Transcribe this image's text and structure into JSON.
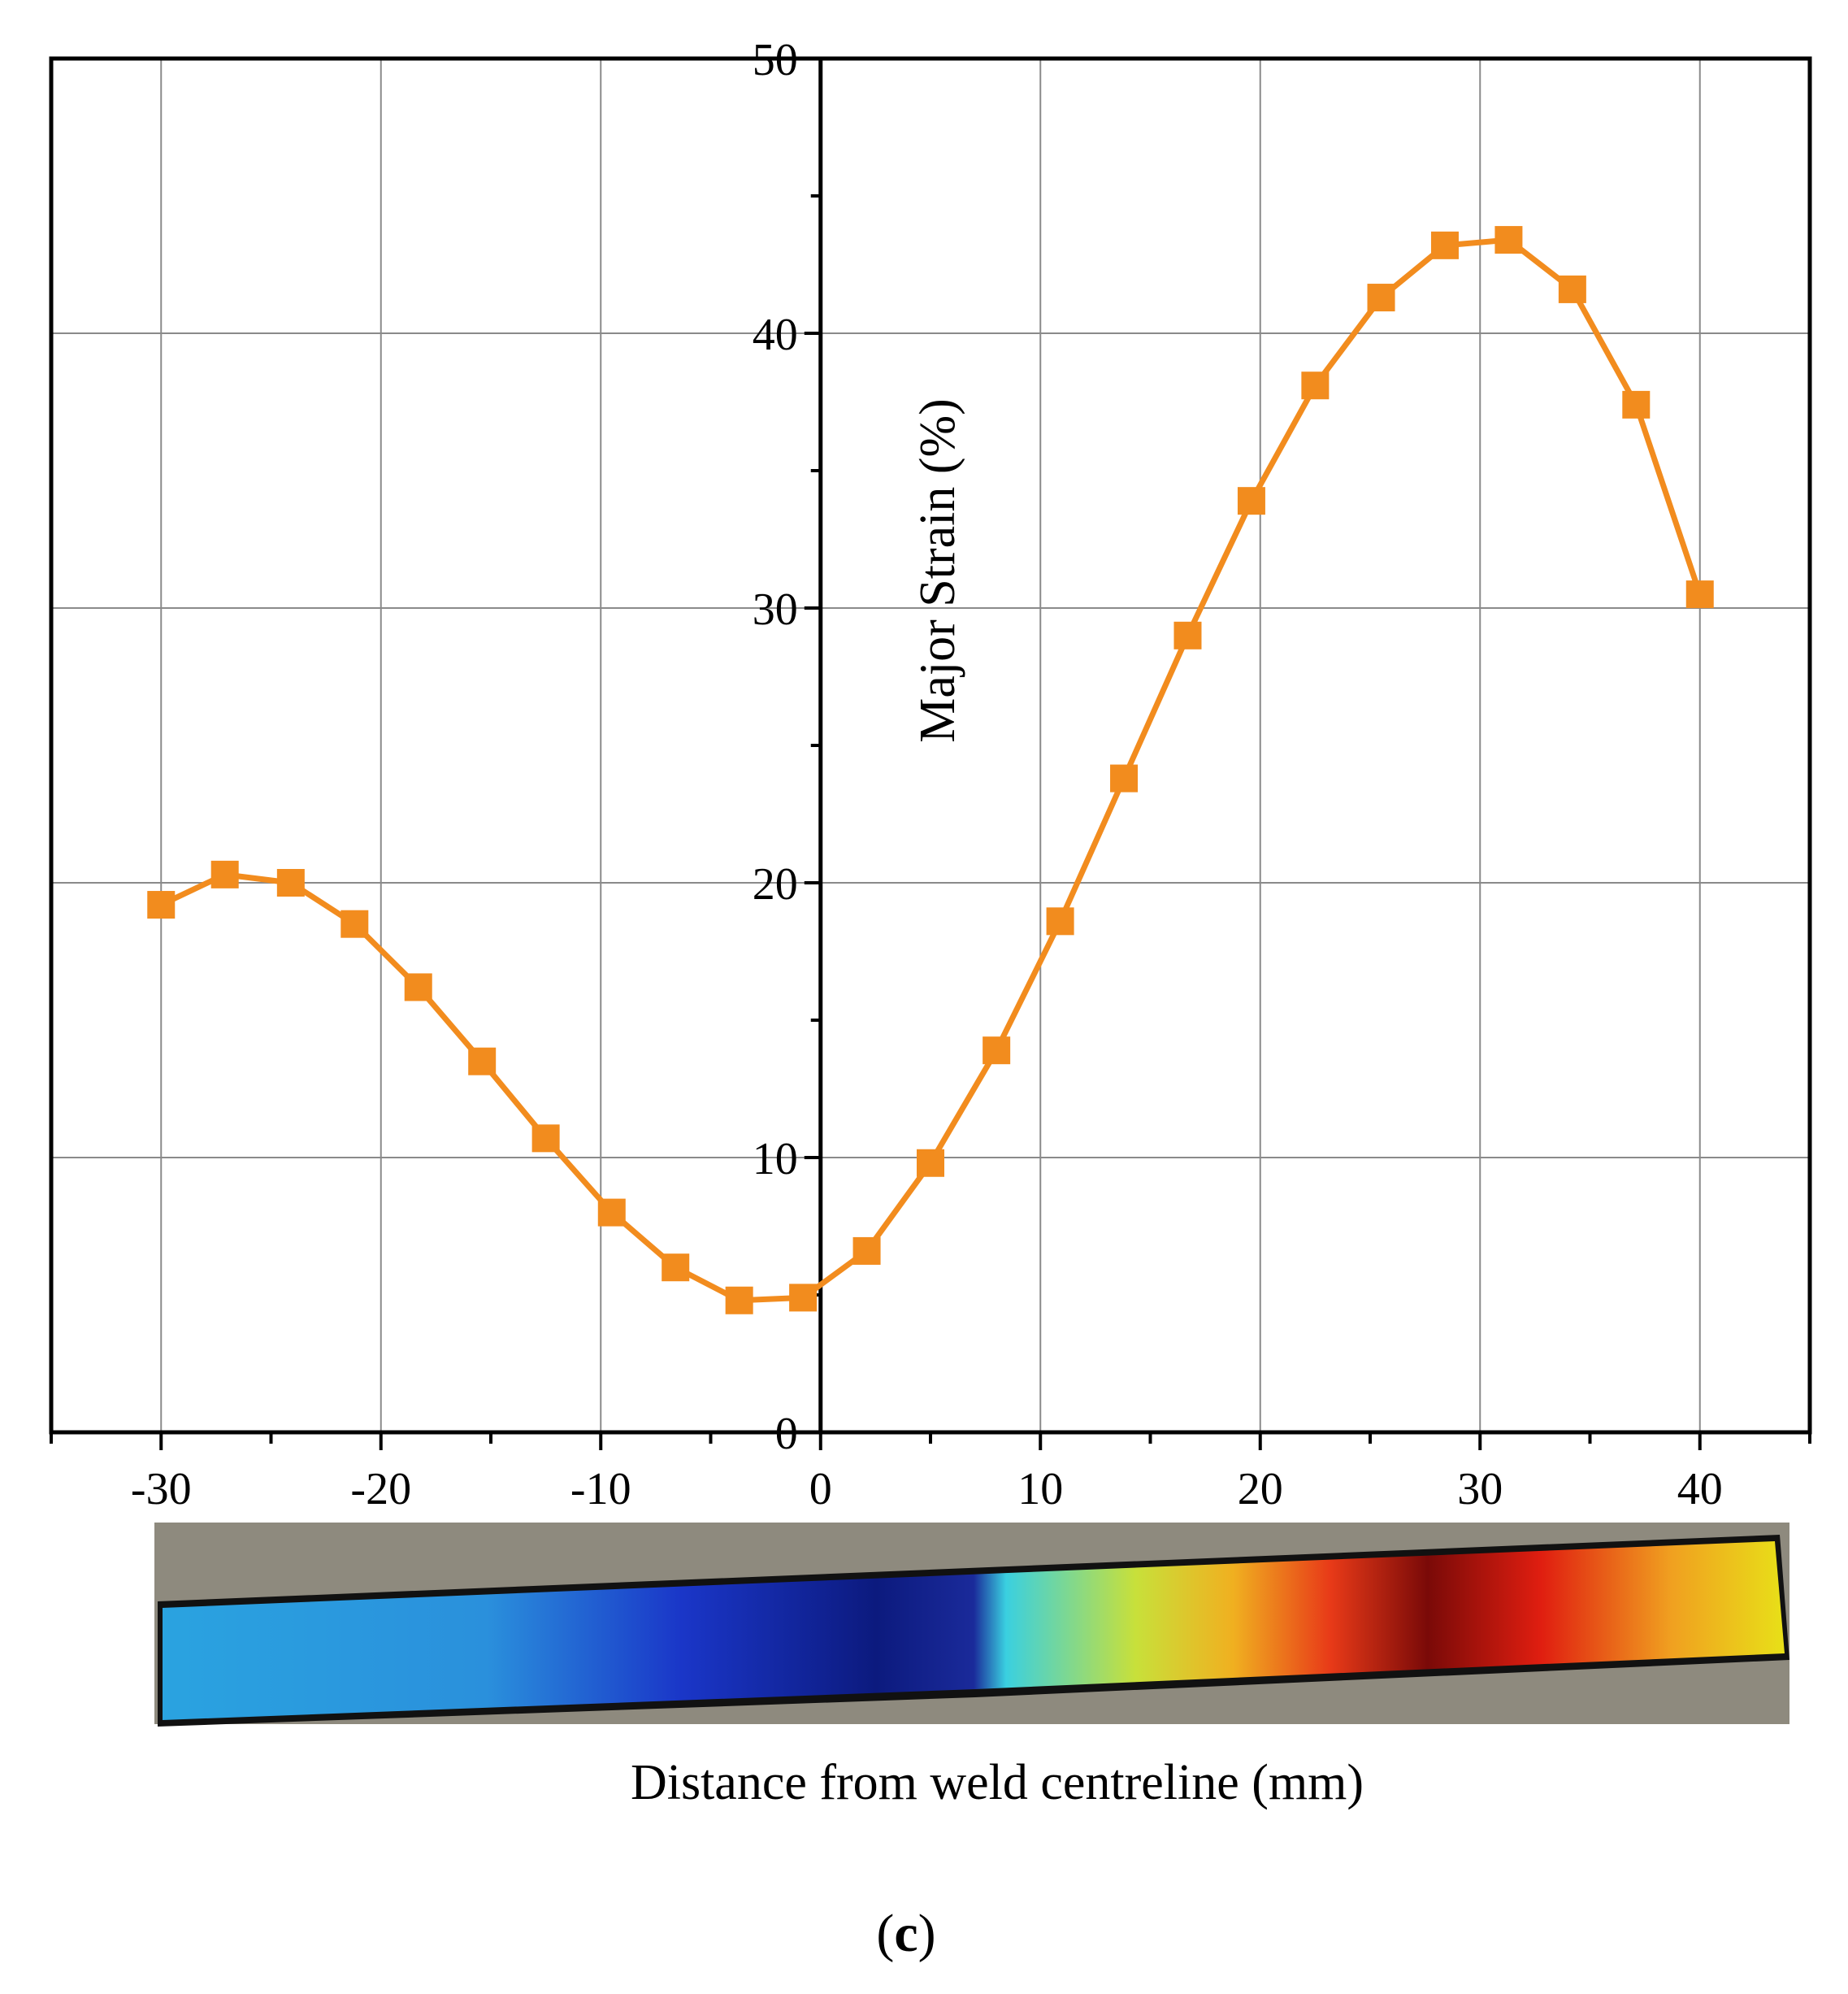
{
  "chart_data": {
    "type": "line",
    "title": "",
    "xlabel": "Distance from weld centreline (mm)",
    "ylabel": "Major Strain (%)",
    "xlim": [
      -35,
      45
    ],
    "ylim": [
      0,
      50
    ],
    "x_ticks": [
      -30,
      -20,
      -10,
      0,
      10,
      20,
      30,
      40
    ],
    "y_ticks": [
      0,
      10,
      20,
      30,
      40,
      50
    ],
    "x_tick_labels": [
      "-30",
      "-20",
      "-10",
      "0",
      "10",
      "20",
      "30",
      "40"
    ],
    "y_tick_labels": [
      "0",
      "10",
      "20",
      "30",
      "40",
      "50"
    ],
    "grid": true,
    "marker": "square",
    "series": [
      {
        "color": "#f28c1e",
        "x": [
          -30,
          -27.1,
          -24.1,
          -21.2,
          -18.3,
          -15.4,
          -12.5,
          -9.5,
          -6.6,
          -3.7,
          -0.8,
          2.1,
          5.0,
          8.0,
          10.9,
          13.8,
          16.7,
          19.6,
          22.5,
          25.5,
          28.4,
          31.3,
          34.2,
          37.1,
          40.0
        ],
        "y": [
          19.2,
          20.3,
          20.0,
          18.5,
          16.2,
          13.5,
          10.7,
          8.0,
          6.0,
          4.8,
          4.9,
          6.6,
          9.8,
          13.9,
          18.6,
          23.8,
          29.0,
          33.9,
          38.1,
          41.3,
          43.2,
          43.4,
          41.6,
          37.4,
          30.5
        ]
      }
    ],
    "inset": {
      "description_color_map": [
        "#2aa3e0",
        "#1030c0",
        "#0a1a80",
        "#40d0e0",
        "#d8e030",
        "#f08020",
        "#e82010",
        "#7a0a08",
        "#e82010",
        "#f0a020",
        "#e8e018"
      ]
    }
  },
  "figure": {
    "panel_label": "(c)",
    "panel_letter": "c"
  },
  "colors": {
    "series": "#f28c1e",
    "grid": "#8a8a8a",
    "axis": "#000000",
    "inset_background": "#8e8a7e"
  }
}
